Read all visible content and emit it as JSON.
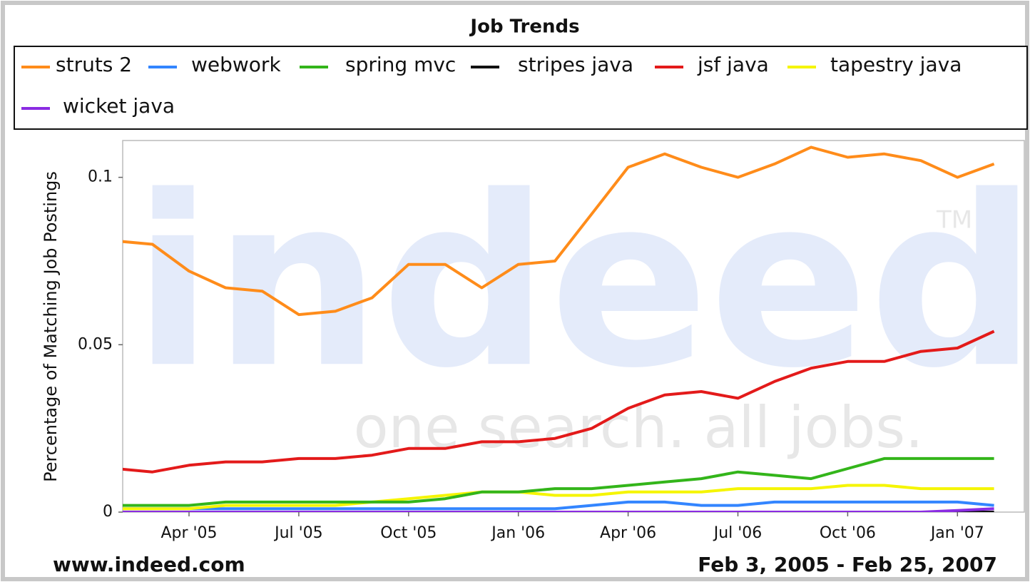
{
  "chart_data": {
    "type": "line",
    "title": "Job Trends",
    "y_label": "Percentage of Matching Job Postings",
    "source": "www.indeed.com",
    "date_range": "Feb 3, 2005 - Feb 25, 2007",
    "watermark": {
      "logo": "indeed",
      "tagline": "one search. all jobs.",
      "mark": "TM"
    },
    "categories": [
      null,
      null,
      "Apr '05",
      null,
      null,
      "Jul '05",
      null,
      null,
      "Oct '05",
      null,
      null,
      "Jan '06",
      null,
      null,
      "Apr '06",
      null,
      null,
      "Jul '06",
      null,
      null,
      "Oct '06",
      null,
      null,
      "Jan '07",
      null
    ],
    "series": [
      {
        "name": "struts 2",
        "color": "#ff8c1a",
        "values": [
          0.081,
          0.08,
          0.072,
          0.067,
          0.066,
          0.059,
          0.06,
          0.064,
          0.074,
          0.074,
          0.067,
          0.074,
          0.075,
          0.089,
          0.103,
          0.107,
          0.103,
          0.1,
          0.104,
          0.109,
          0.106,
          0.107,
          0.105,
          0.1,
          0.104
        ]
      },
      {
        "name": "webwork",
        "color": "#3385ff",
        "values": [
          0.001,
          0.001,
          0.001,
          0.001,
          0.001,
          0.001,
          0.001,
          0.001,
          0.001,
          0.001,
          0.001,
          0.001,
          0.001,
          0.002,
          0.003,
          0.003,
          0.002,
          0.002,
          0.003,
          0.003,
          0.003,
          0.003,
          0.003,
          0.003,
          0.002
        ]
      },
      {
        "name": "spring mvc",
        "color": "#33b51a",
        "values": [
          0.002,
          0.002,
          0.002,
          0.003,
          0.003,
          0.003,
          0.003,
          0.003,
          0.003,
          0.004,
          0.006,
          0.006,
          0.007,
          0.007,
          0.008,
          0.009,
          0.01,
          0.012,
          0.011,
          0.01,
          0.013,
          0.016,
          0.016,
          0.016,
          0.016
        ]
      },
      {
        "name": "stripes java",
        "color": "#111111",
        "values": [
          0,
          0,
          0,
          0,
          0,
          0,
          0,
          0,
          0,
          0,
          0,
          0,
          0,
          0,
          0,
          0,
          0,
          0,
          0,
          0,
          0,
          0,
          0,
          0,
          0
        ]
      },
      {
        "name": "jsf java",
        "color": "#e31a1a",
        "values": [
          0.013,
          0.012,
          0.014,
          0.015,
          0.015,
          0.016,
          0.016,
          0.017,
          0.019,
          0.019,
          0.021,
          0.021,
          0.022,
          0.025,
          0.031,
          0.035,
          0.036,
          0.034,
          0.039,
          0.043,
          0.045,
          0.045,
          0.048,
          0.049,
          0.054
        ]
      },
      {
        "name": "tapestry java",
        "color": "#f5f500",
        "values": [
          0.001,
          0.001,
          0.001,
          0.002,
          0.002,
          0.002,
          0.002,
          0.003,
          0.004,
          0.005,
          0.006,
          0.006,
          0.005,
          0.005,
          0.006,
          0.006,
          0.006,
          0.007,
          0.007,
          0.007,
          0.008,
          0.008,
          0.007,
          0.007,
          0.007
        ]
      },
      {
        "name": "wicket java",
        "color": "#8a2be2",
        "values": [
          0,
          0,
          0,
          0,
          0,
          0,
          0,
          0,
          0,
          0,
          0,
          0,
          0,
          0,
          0,
          0,
          0,
          0,
          0,
          0,
          0,
          0,
          0,
          0.0005,
          0.001
        ]
      }
    ],
    "ylim": [
      0,
      0.111
    ],
    "yticks": [
      0,
      0.05,
      0.1
    ]
  }
}
